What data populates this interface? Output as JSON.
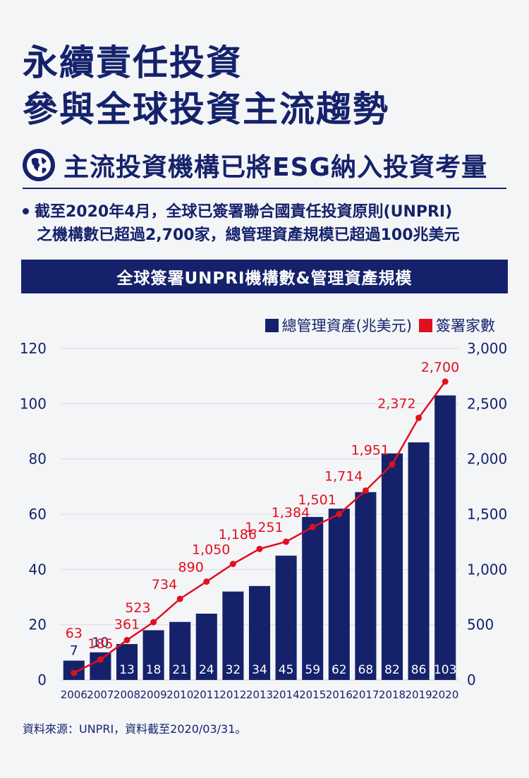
{
  "header": {
    "title_line1": "永續責任投資",
    "title_line2": "參與全球投資主流趨勢",
    "subheading": "主流投資機構已將ESG納入投資考量",
    "bullet_line1": "截至2020年4月，全球已簽署聯合國責任投資原則(UNPRI)",
    "bullet_line2": "之機構數已超過2,700家，總管理資產規模已超過100兆美元"
  },
  "colors": {
    "navy": "#15226b",
    "red": "#e0101f"
  },
  "chart_data": {
    "type": "bar",
    "title": "全球簽署UNPRI機構數&管理資產規模",
    "categories": [
      "2006",
      "2007",
      "2008",
      "2009",
      "2010",
      "2011",
      "2012",
      "2013",
      "2014",
      "2015",
      "2016",
      "2017",
      "2018",
      "2019",
      "2020"
    ],
    "series": [
      {
        "name": "總管理資產(兆美元)",
        "type": "bar",
        "axis": "left",
        "values": [
          7,
          10,
          13,
          18,
          21,
          24,
          32,
          34,
          45,
          59,
          62,
          68,
          82,
          86,
          103
        ],
        "labels": [
          "7",
          "10",
          "13",
          "18",
          "21",
          "24",
          "32",
          "34",
          "45",
          "59",
          "62",
          "68",
          "82",
          "86",
          "103"
        ]
      },
      {
        "name": "簽署家數",
        "type": "line",
        "axis": "right",
        "values": [
          63,
          185,
          361,
          523,
          734,
          890,
          1050,
          1186,
          1251,
          1384,
          1501,
          1714,
          1951,
          2372,
          2700
        ],
        "labels": [
          "63",
          "185",
          "361",
          "523",
          "734",
          "890",
          "1,050",
          "1,186",
          "1,251",
          "1,384",
          "1,501",
          "1,714",
          "1,951",
          "2,372",
          "2,700"
        ]
      }
    ],
    "y_left": {
      "min": 0,
      "max": 120,
      "ticks": [
        "0",
        "20",
        "40",
        "60",
        "80",
        "100",
        "120"
      ]
    },
    "y_right": {
      "min": 0,
      "max": 3000,
      "ticks": [
        "0",
        "500",
        "1,000",
        "1,500",
        "2,000",
        "2,500",
        "3,000"
      ]
    },
    "grid": true,
    "legend_position": "top-right"
  },
  "source": "資料來源：UNPRI，資料截至2020/03/31。"
}
